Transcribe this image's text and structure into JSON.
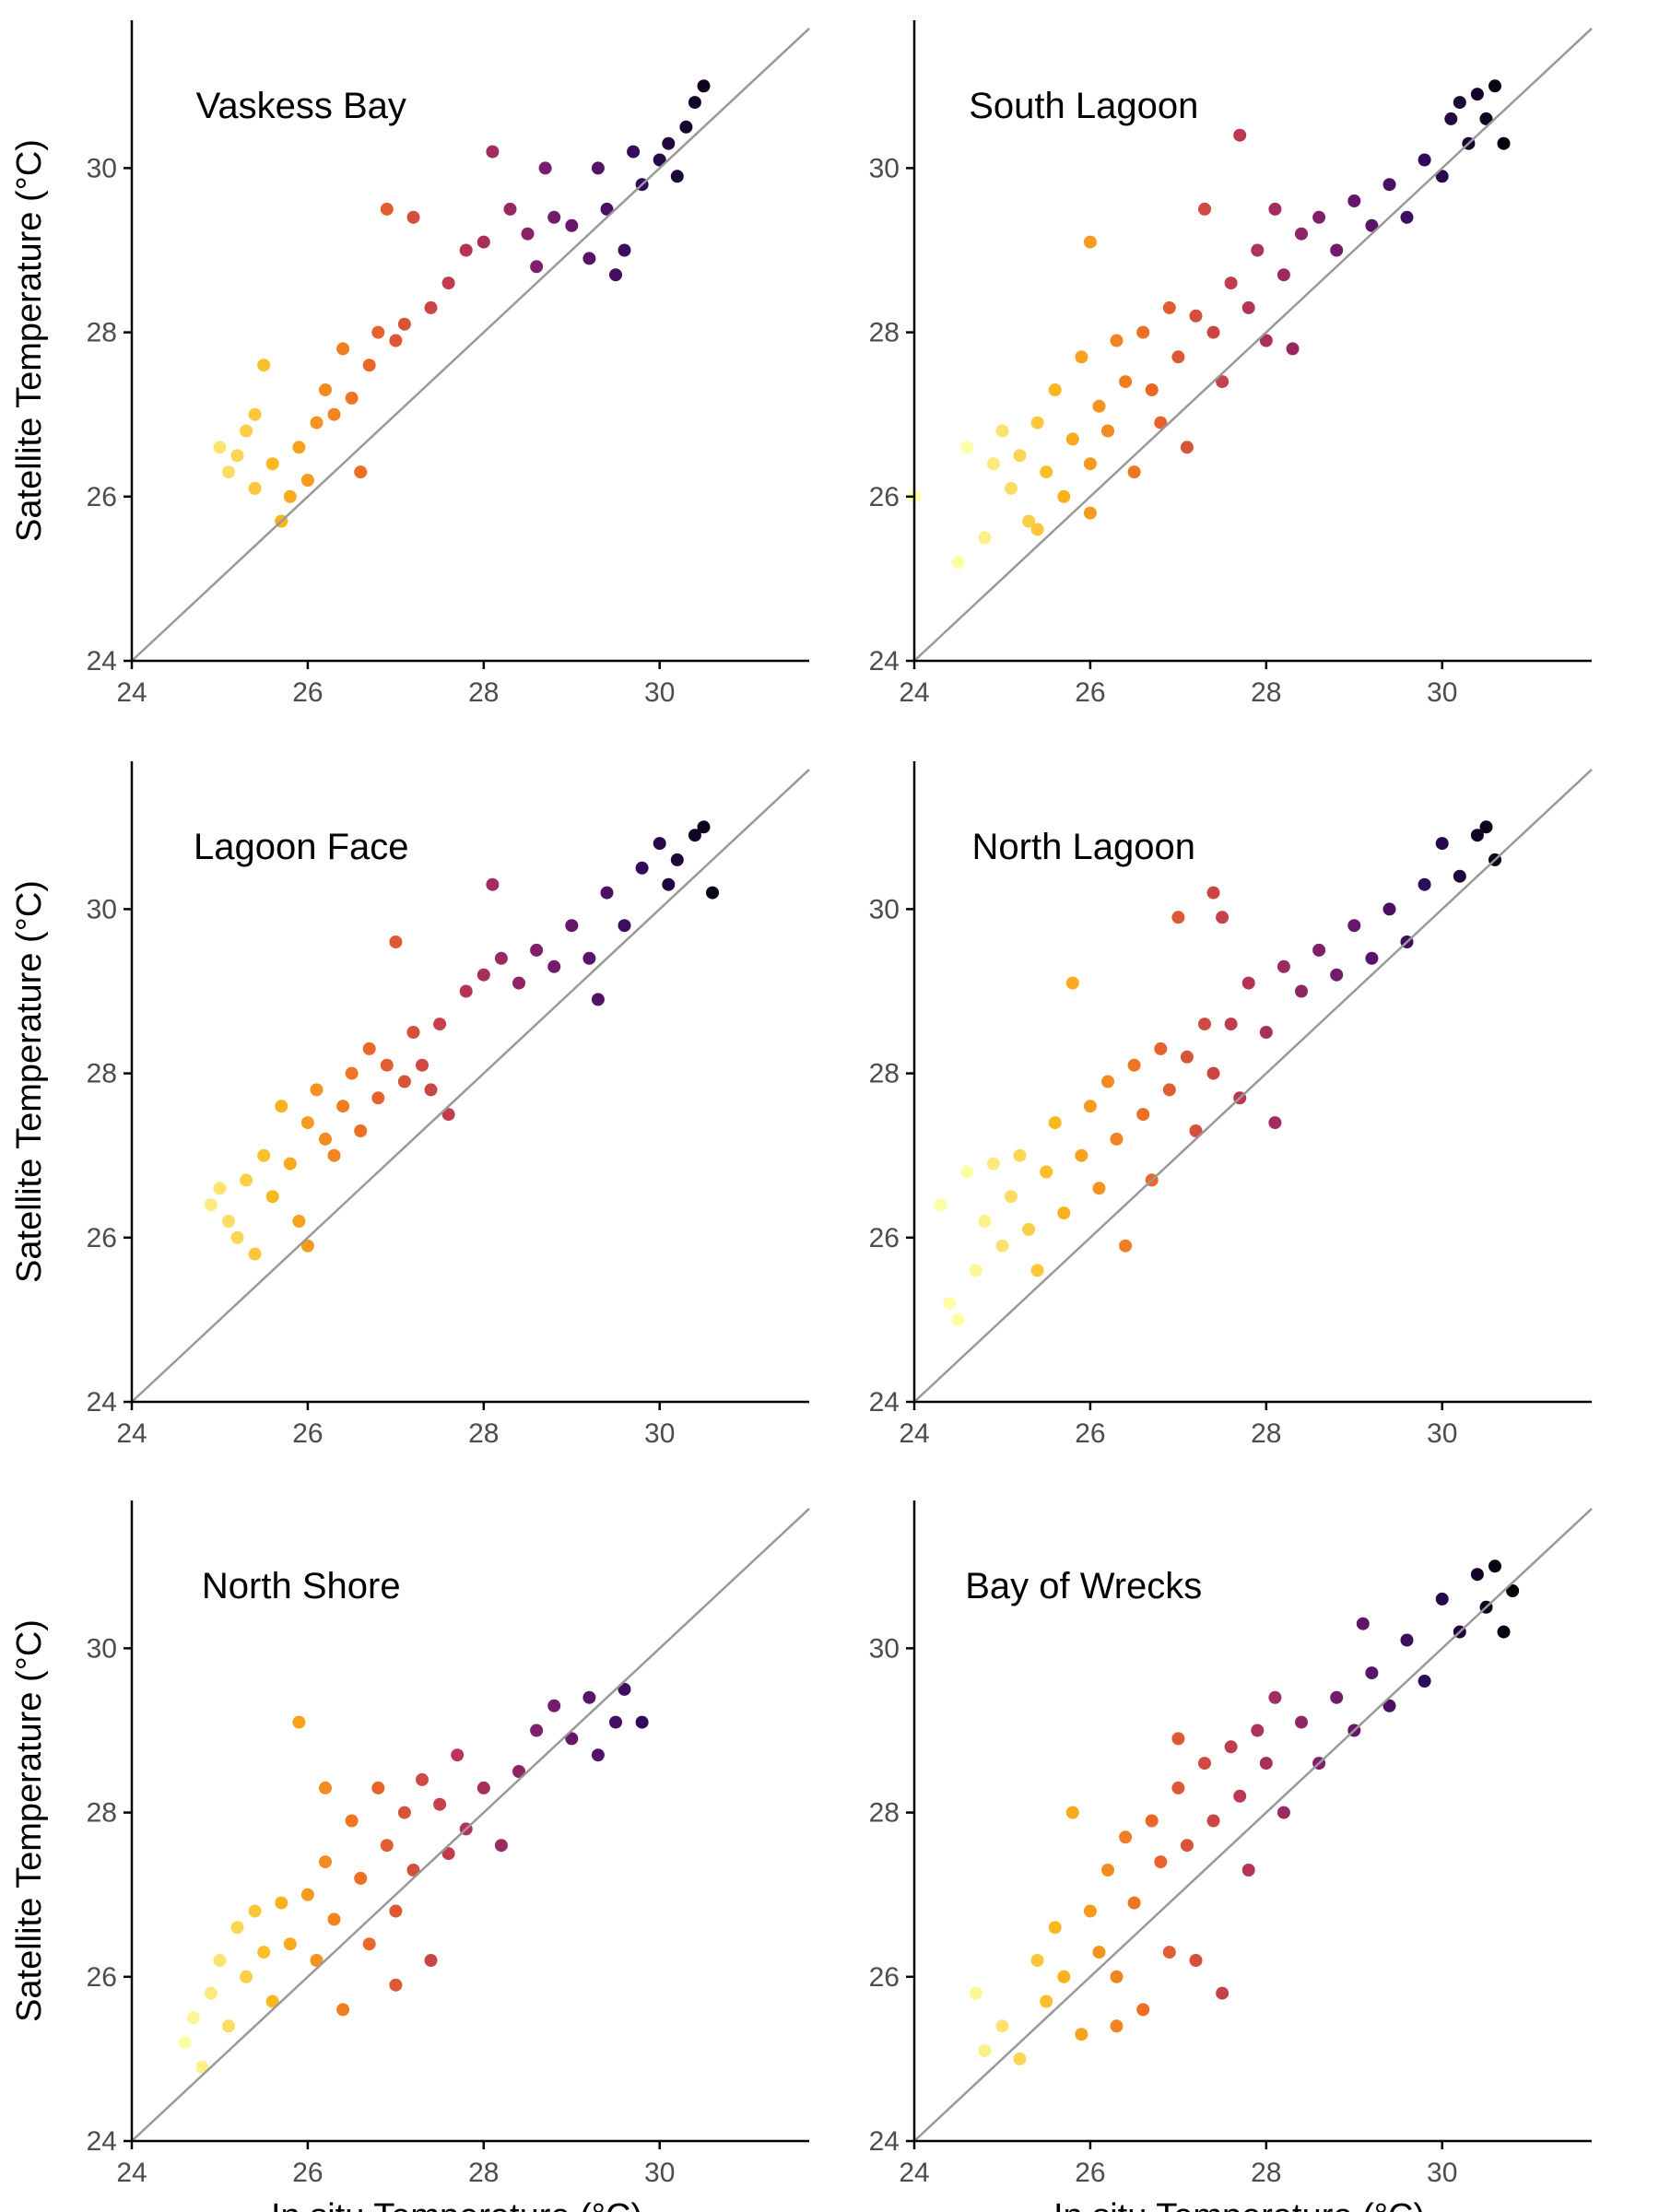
{
  "xlabel": "In situ Temperature (°C)",
  "ylabel": "Satellite Temperature (°C)",
  "colors": {
    "identity_line": "#999999",
    "axis": "#000000",
    "tick_label": "#4d4d4d",
    "colormap": [
      "#000004",
      "#320a5e",
      "#781c6d",
      "#bc3754",
      "#ed6925",
      "#fbb61a",
      "#fcffa4"
    ]
  },
  "chart_data": [
    {
      "type": "scatter",
      "panel": "Vaskess Bay",
      "title": "Vaskess Bay",
      "xlim": [
        24,
        31.7
      ],
      "ylim": [
        24,
        31.8
      ],
      "xticks": [
        24,
        26,
        28,
        30
      ],
      "yticks": [
        24,
        26,
        28,
        30
      ],
      "identity_line": true,
      "color_by": "x",
      "xlabel": "",
      "ylabel": "Satellite Temperature (°C)",
      "points": [
        [
          25.1,
          26.3
        ],
        [
          25.2,
          26.5
        ],
        [
          25.3,
          26.8
        ],
        [
          25.4,
          27.0
        ],
        [
          25.4,
          26.1
        ],
        [
          25.5,
          27.6
        ],
        [
          25.6,
          26.4
        ],
        [
          25.7,
          25.7
        ],
        [
          25.8,
          26.0
        ],
        [
          25.9,
          26.6
        ],
        [
          26.0,
          26.2
        ],
        [
          26.1,
          26.9
        ],
        [
          26.2,
          27.3
        ],
        [
          26.3,
          27.0
        ],
        [
          26.4,
          27.8
        ],
        [
          26.5,
          27.2
        ],
        [
          26.6,
          26.3
        ],
        [
          26.7,
          27.6
        ],
        [
          26.8,
          28.0
        ],
        [
          27.0,
          27.9
        ],
        [
          27.1,
          28.1
        ],
        [
          27.2,
          29.4
        ],
        [
          27.4,
          28.3
        ],
        [
          27.6,
          28.6
        ],
        [
          27.8,
          29.0
        ],
        [
          28.0,
          29.1
        ],
        [
          28.1,
          30.2
        ],
        [
          28.3,
          29.5
        ],
        [
          28.5,
          29.2
        ],
        [
          28.6,
          28.8
        ],
        [
          28.7,
          30.0
        ],
        [
          28.8,
          29.4
        ],
        [
          29.0,
          29.3
        ],
        [
          29.2,
          28.9
        ],
        [
          29.3,
          30.0
        ],
        [
          29.4,
          29.5
        ],
        [
          29.6,
          29.0
        ],
        [
          29.7,
          30.2
        ],
        [
          29.8,
          29.8
        ],
        [
          30.0,
          30.1
        ],
        [
          30.1,
          30.3
        ],
        [
          30.2,
          29.9
        ],
        [
          30.3,
          30.5
        ],
        [
          30.4,
          30.8
        ],
        [
          30.5,
          31.0
        ],
        [
          29.5,
          28.7
        ],
        [
          26.9,
          29.5
        ],
        [
          25.0,
          26.6
        ]
      ]
    },
    {
      "type": "scatter",
      "panel": "South Lagoon",
      "title": "South Lagoon",
      "xlim": [
        24,
        31.7
      ],
      "ylim": [
        24,
        31.8
      ],
      "xticks": [
        24,
        26,
        28,
        30
      ],
      "yticks": [
        24,
        26,
        28,
        30
      ],
      "identity_line": true,
      "color_by": "x",
      "xlabel": "",
      "ylabel": "",
      "points": [
        [
          24.0,
          26.0
        ],
        [
          24.5,
          25.2
        ],
        [
          24.6,
          26.6
        ],
        [
          24.8,
          25.5
        ],
        [
          24.9,
          26.4
        ],
        [
          25.0,
          26.8
        ],
        [
          25.1,
          26.1
        ],
        [
          25.2,
          26.5
        ],
        [
          25.3,
          25.7
        ],
        [
          25.4,
          26.9
        ],
        [
          25.5,
          26.3
        ],
        [
          25.6,
          27.3
        ],
        [
          25.7,
          26.0
        ],
        [
          25.8,
          26.7
        ],
        [
          25.9,
          27.7
        ],
        [
          26.0,
          29.1
        ],
        [
          26.0,
          26.4
        ],
        [
          26.1,
          27.1
        ],
        [
          26.2,
          26.8
        ],
        [
          26.3,
          27.9
        ],
        [
          26.4,
          27.4
        ],
        [
          26.5,
          26.3
        ],
        [
          26.6,
          28.0
        ],
        [
          26.7,
          27.3
        ],
        [
          26.8,
          26.9
        ],
        [
          26.9,
          28.3
        ],
        [
          27.0,
          27.7
        ],
        [
          27.1,
          26.6
        ],
        [
          27.2,
          28.2
        ],
        [
          27.3,
          29.5
        ],
        [
          27.4,
          28.0
        ],
        [
          27.5,
          27.4
        ],
        [
          27.6,
          28.6
        ],
        [
          27.7,
          30.4
        ],
        [
          27.8,
          28.3
        ],
        [
          27.9,
          29.0
        ],
        [
          28.0,
          27.9
        ],
        [
          28.1,
          29.5
        ],
        [
          28.2,
          28.7
        ],
        [
          28.4,
          29.2
        ],
        [
          28.6,
          29.4
        ],
        [
          28.8,
          29.0
        ],
        [
          29.0,
          29.6
        ],
        [
          29.2,
          29.3
        ],
        [
          29.4,
          29.8
        ],
        [
          29.6,
          29.4
        ],
        [
          29.8,
          30.1
        ],
        [
          30.0,
          29.9
        ],
        [
          30.1,
          30.6
        ],
        [
          30.2,
          30.8
        ],
        [
          30.3,
          30.3
        ],
        [
          30.4,
          30.9
        ],
        [
          30.5,
          30.6
        ],
        [
          30.6,
          31.0
        ],
        [
          30.7,
          30.3
        ],
        [
          26.0,
          25.8
        ],
        [
          25.4,
          25.6
        ],
        [
          28.3,
          27.8
        ]
      ]
    },
    {
      "type": "scatter",
      "panel": "Lagoon Face",
      "title": "Lagoon Face",
      "xlim": [
        24,
        31.7
      ],
      "ylim": [
        24,
        31.8
      ],
      "xticks": [
        24,
        26,
        28,
        30
      ],
      "yticks": [
        24,
        26,
        28,
        30
      ],
      "identity_line": true,
      "color_by": "x",
      "xlabel": "",
      "ylabel": "Satellite Temperature (°C)",
      "points": [
        [
          24.9,
          26.4
        ],
        [
          25.0,
          26.6
        ],
        [
          25.1,
          26.2
        ],
        [
          25.2,
          26.0
        ],
        [
          25.3,
          26.7
        ],
        [
          25.4,
          25.8
        ],
        [
          25.5,
          27.0
        ],
        [
          25.6,
          26.5
        ],
        [
          25.7,
          27.6
        ],
        [
          25.8,
          26.9
        ],
        [
          25.9,
          26.2
        ],
        [
          26.0,
          27.4
        ],
        [
          26.1,
          27.8
        ],
        [
          26.2,
          27.2
        ],
        [
          26.3,
          27.0
        ],
        [
          26.4,
          27.6
        ],
        [
          26.5,
          28.0
        ],
        [
          26.6,
          27.3
        ],
        [
          26.7,
          28.3
        ],
        [
          26.8,
          27.7
        ],
        [
          26.9,
          28.1
        ],
        [
          27.0,
          29.6
        ],
        [
          27.1,
          27.9
        ],
        [
          27.2,
          28.5
        ],
        [
          27.3,
          28.1
        ],
        [
          27.4,
          27.8
        ],
        [
          27.5,
          28.6
        ],
        [
          27.6,
          27.5
        ],
        [
          27.8,
          29.0
        ],
        [
          28.0,
          29.2
        ],
        [
          28.1,
          30.3
        ],
        [
          28.2,
          29.4
        ],
        [
          28.4,
          29.1
        ],
        [
          28.6,
          29.5
        ],
        [
          28.8,
          29.3
        ],
        [
          29.0,
          29.8
        ],
        [
          29.2,
          29.4
        ],
        [
          29.3,
          28.9
        ],
        [
          29.4,
          30.2
        ],
        [
          29.6,
          29.8
        ],
        [
          29.8,
          30.5
        ],
        [
          30.0,
          30.8
        ],
        [
          30.1,
          30.3
        ],
        [
          30.2,
          30.6
        ],
        [
          30.4,
          30.9
        ],
        [
          30.5,
          31.0
        ],
        [
          30.6,
          30.2
        ],
        [
          26.0,
          25.9
        ]
      ]
    },
    {
      "type": "scatter",
      "panel": "North Lagoon",
      "title": "North Lagoon",
      "xlim": [
        24,
        31.7
      ],
      "ylim": [
        24,
        31.8
      ],
      "xticks": [
        24,
        26,
        28,
        30
      ],
      "yticks": [
        24,
        26,
        28,
        30
      ],
      "identity_line": true,
      "color_by": "x",
      "xlabel": "",
      "ylabel": "",
      "points": [
        [
          24.3,
          26.4
        ],
        [
          24.4,
          25.2
        ],
        [
          24.5,
          25.0
        ],
        [
          24.6,
          26.8
        ],
        [
          24.7,
          25.6
        ],
        [
          24.8,
          26.2
        ],
        [
          24.9,
          26.9
        ],
        [
          25.0,
          25.9
        ],
        [
          25.1,
          26.5
        ],
        [
          25.2,
          27.0
        ],
        [
          25.3,
          26.1
        ],
        [
          25.4,
          25.6
        ],
        [
          25.5,
          26.8
        ],
        [
          25.6,
          27.4
        ],
        [
          25.7,
          26.3
        ],
        [
          25.8,
          29.1
        ],
        [
          25.9,
          27.0
        ],
        [
          26.0,
          27.6
        ],
        [
          26.1,
          26.6
        ],
        [
          26.2,
          27.9
        ],
        [
          26.3,
          27.2
        ],
        [
          26.4,
          25.9
        ],
        [
          26.5,
          28.1
        ],
        [
          26.6,
          27.5
        ],
        [
          26.7,
          26.7
        ],
        [
          26.8,
          28.3
        ],
        [
          26.9,
          27.8
        ],
        [
          27.0,
          29.9
        ],
        [
          27.1,
          28.2
        ],
        [
          27.2,
          27.3
        ],
        [
          27.3,
          28.6
        ],
        [
          27.4,
          28.0
        ],
        [
          27.5,
          29.9
        ],
        [
          27.6,
          28.6
        ],
        [
          27.7,
          27.7
        ],
        [
          27.8,
          29.1
        ],
        [
          28.0,
          28.5
        ],
        [
          28.2,
          29.3
        ],
        [
          28.4,
          29.0
        ],
        [
          28.6,
          29.5
        ],
        [
          28.8,
          29.2
        ],
        [
          29.0,
          29.8
        ],
        [
          29.2,
          29.4
        ],
        [
          29.4,
          30.0
        ],
        [
          29.6,
          29.6
        ],
        [
          29.8,
          30.3
        ],
        [
          30.0,
          30.8
        ],
        [
          30.2,
          30.4
        ],
        [
          30.4,
          30.9
        ],
        [
          30.5,
          31.0
        ],
        [
          30.6,
          30.6
        ],
        [
          27.4,
          30.2
        ],
        [
          28.1,
          27.4
        ]
      ]
    },
    {
      "type": "scatter",
      "panel": "North Shore",
      "title": "North Shore",
      "xlim": [
        24,
        31.7
      ],
      "ylim": [
        24,
        31.8
      ],
      "xticks": [
        24,
        26,
        28,
        30
      ],
      "yticks": [
        24,
        26,
        28,
        30
      ],
      "identity_line": true,
      "color_by": "x",
      "xlabel": "In situ Temperature (°C)",
      "ylabel": "Satellite Temperature (°C)",
      "points": [
        [
          24.6,
          25.2
        ],
        [
          24.7,
          25.5
        ],
        [
          24.8,
          24.9
        ],
        [
          24.9,
          25.8
        ],
        [
          25.0,
          26.2
        ],
        [
          25.1,
          25.4
        ],
        [
          25.2,
          26.6
        ],
        [
          25.3,
          26.0
        ],
        [
          25.4,
          26.8
        ],
        [
          25.5,
          26.3
        ],
        [
          25.6,
          25.7
        ],
        [
          25.7,
          26.9
        ],
        [
          25.8,
          26.4
        ],
        [
          25.9,
          29.1
        ],
        [
          26.0,
          27.0
        ],
        [
          26.1,
          26.2
        ],
        [
          26.2,
          27.4
        ],
        [
          26.3,
          26.7
        ],
        [
          26.4,
          25.6
        ],
        [
          26.5,
          27.9
        ],
        [
          26.6,
          27.2
        ],
        [
          26.7,
          26.4
        ],
        [
          26.8,
          28.3
        ],
        [
          26.9,
          27.6
        ],
        [
          27.0,
          26.8
        ],
        [
          27.1,
          28.0
        ],
        [
          27.2,
          27.3
        ],
        [
          27.3,
          28.4
        ],
        [
          27.4,
          26.2
        ],
        [
          27.5,
          28.1
        ],
        [
          27.6,
          27.5
        ],
        [
          27.7,
          28.7
        ],
        [
          27.8,
          27.8
        ],
        [
          28.0,
          28.3
        ],
        [
          28.2,
          27.6
        ],
        [
          28.4,
          28.5
        ],
        [
          28.6,
          29.0
        ],
        [
          28.8,
          29.3
        ],
        [
          29.0,
          28.9
        ],
        [
          29.2,
          29.4
        ],
        [
          29.3,
          28.7
        ],
        [
          29.5,
          29.1
        ],
        [
          29.6,
          29.5
        ],
        [
          29.8,
          29.1
        ],
        [
          26.2,
          28.3
        ],
        [
          27.0,
          25.9
        ]
      ]
    },
    {
      "type": "scatter",
      "panel": "Bay of Wrecks",
      "title": "Bay of Wrecks",
      "xlim": [
        24,
        31.7
      ],
      "ylim": [
        24,
        31.8
      ],
      "xticks": [
        24,
        26,
        28,
        30
      ],
      "yticks": [
        24,
        26,
        28,
        30
      ],
      "identity_line": true,
      "color_by": "x",
      "xlabel": "In situ Temperature (°C)",
      "ylabel": "",
      "points": [
        [
          24.7,
          25.8
        ],
        [
          24.8,
          25.1
        ],
        [
          25.0,
          25.4
        ],
        [
          25.2,
          25.0
        ],
        [
          25.4,
          26.2
        ],
        [
          25.5,
          25.7
        ],
        [
          25.6,
          26.6
        ],
        [
          25.7,
          26.0
        ],
        [
          25.8,
          28.0
        ],
        [
          25.9,
          25.3
        ],
        [
          26.0,
          26.8
        ],
        [
          26.1,
          26.3
        ],
        [
          26.2,
          27.3
        ],
        [
          26.3,
          26.0
        ],
        [
          26.4,
          27.7
        ],
        [
          26.5,
          26.9
        ],
        [
          26.6,
          25.6
        ],
        [
          26.7,
          27.9
        ],
        [
          26.8,
          27.4
        ],
        [
          26.9,
          26.3
        ],
        [
          27.0,
          28.3
        ],
        [
          27.1,
          27.6
        ],
        [
          27.2,
          26.2
        ],
        [
          27.3,
          28.6
        ],
        [
          27.4,
          27.9
        ],
        [
          27.5,
          25.8
        ],
        [
          27.6,
          28.8
        ],
        [
          27.7,
          28.2
        ],
        [
          27.8,
          27.3
        ],
        [
          27.9,
          29.0
        ],
        [
          28.0,
          28.6
        ],
        [
          28.1,
          29.4
        ],
        [
          28.2,
          28.0
        ],
        [
          28.4,
          29.1
        ],
        [
          28.6,
          28.6
        ],
        [
          28.8,
          29.4
        ],
        [
          29.0,
          29.0
        ],
        [
          29.1,
          30.3
        ],
        [
          29.2,
          29.7
        ],
        [
          29.4,
          29.3
        ],
        [
          29.6,
          30.1
        ],
        [
          29.8,
          29.6
        ],
        [
          30.0,
          30.6
        ],
        [
          30.2,
          30.2
        ],
        [
          30.4,
          30.9
        ],
        [
          30.5,
          30.5
        ],
        [
          30.6,
          31.0
        ],
        [
          30.7,
          30.2
        ],
        [
          30.8,
          30.7
        ],
        [
          27.0,
          28.9
        ],
        [
          26.3,
          25.4
        ]
      ]
    }
  ]
}
